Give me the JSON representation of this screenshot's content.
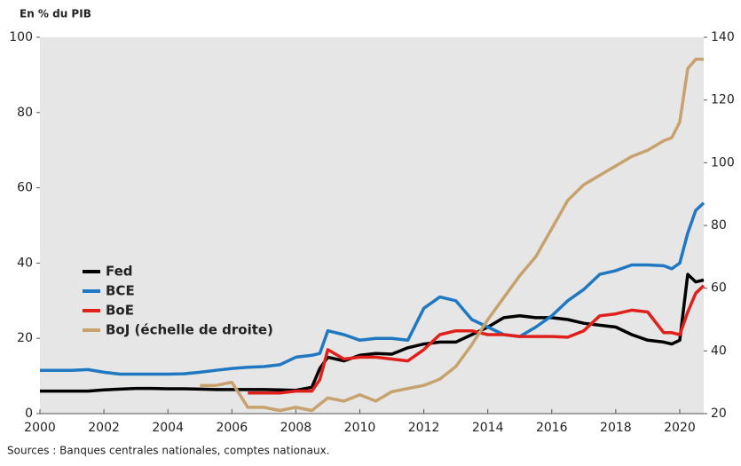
{
  "chart_data": {
    "type": "line",
    "y_label": "En % du PIB",
    "source": "Sources : Banques centrales nationales, comptes nationaux.",
    "x": [
      2000,
      2000.5,
      2001,
      2001.5,
      2002,
      2002.5,
      2003,
      2003.5,
      2004,
      2004.5,
      2005,
      2005.5,
      2006,
      2006.5,
      2007,
      2007.5,
      2008,
      2008.5,
      2008.75,
      2009,
      2009.5,
      2010,
      2010.5,
      2011,
      2011.5,
      2012,
      2012.5,
      2013,
      2013.5,
      2014,
      2014.5,
      2015,
      2015.5,
      2016,
      2016.5,
      2017,
      2017.5,
      2018,
      2018.5,
      2019,
      2019.5,
      2019.75,
      2020,
      2020.25,
      2020.5,
      2020.75
    ],
    "series": [
      {
        "name": "Fed",
        "color": "#000000",
        "values": [
          6,
          6,
          6,
          6,
          6.3,
          6.5,
          6.7,
          6.7,
          6.6,
          6.6,
          6.5,
          6.4,
          6.4,
          6.4,
          6.4,
          6.3,
          6.2,
          7,
          12,
          15,
          14,
          15.5,
          16,
          15.8,
          17.5,
          18.5,
          19,
          19,
          21,
          23,
          25.5,
          26,
          25.5,
          25.5,
          25,
          24,
          23.5,
          23,
          21,
          19.5,
          19,
          18.5,
          19.5,
          37,
          35,
          35.5
        ]
      },
      {
        "name": "BCE",
        "color": "#1f78c1",
        "values": [
          11.5,
          11.5,
          11.5,
          11.7,
          11,
          10.5,
          10.5,
          10.5,
          10.5,
          10.6,
          11,
          11.5,
          12,
          12.3,
          12.5,
          13,
          15,
          15.5,
          16,
          22,
          21,
          19.5,
          20,
          20,
          19.5,
          28,
          31,
          30,
          25,
          23,
          21,
          20.5,
          23,
          26,
          30,
          33,
          37,
          38,
          39.5,
          39.5,
          39.3,
          38.5,
          40,
          48,
          54,
          56
        ]
      },
      {
        "name": "BoE",
        "color": "#e0201b",
        "values": [
          null,
          null,
          null,
          null,
          null,
          null,
          null,
          null,
          null,
          null,
          null,
          null,
          null,
          5.5,
          5.5,
          5.5,
          6,
          6,
          9,
          17,
          14.5,
          15,
          15,
          14.5,
          14,
          17,
          21,
          22,
          22,
          21,
          21,
          20.5,
          20.5,
          20.5,
          20.3,
          22,
          26,
          26.5,
          27.5,
          27,
          21.5,
          21.5,
          21,
          27,
          32,
          34
        ]
      },
      {
        "name": "BoJ (échelle de droite)",
        "color": "#c8a26e",
        "axis": "y2",
        "values": [
          null,
          null,
          null,
          null,
          null,
          null,
          null,
          null,
          null,
          null,
          29,
          29,
          30,
          22,
          22,
          21,
          22,
          21,
          23,
          25,
          24,
          26,
          24,
          27,
          28,
          29,
          31,
          35,
          42,
          50,
          57,
          64,
          70,
          79,
          88,
          93,
          96,
          99,
          102,
          104,
          107,
          108,
          113,
          130,
          133,
          133
        ]
      }
    ],
    "xlim": [
      2000,
      2020.75
    ],
    "xticks": [
      2000,
      2002,
      2004,
      2006,
      2008,
      2010,
      2012,
      2014,
      2016,
      2018,
      2020
    ],
    "ylim": [
      0,
      100
    ],
    "yticks": [
      0,
      20,
      40,
      60,
      80,
      100
    ],
    "y2lim": [
      20,
      140
    ],
    "y2ticks": [
      20,
      40,
      60,
      80,
      100,
      120,
      140
    ],
    "legend": "left",
    "background": "#e6e6e6"
  }
}
